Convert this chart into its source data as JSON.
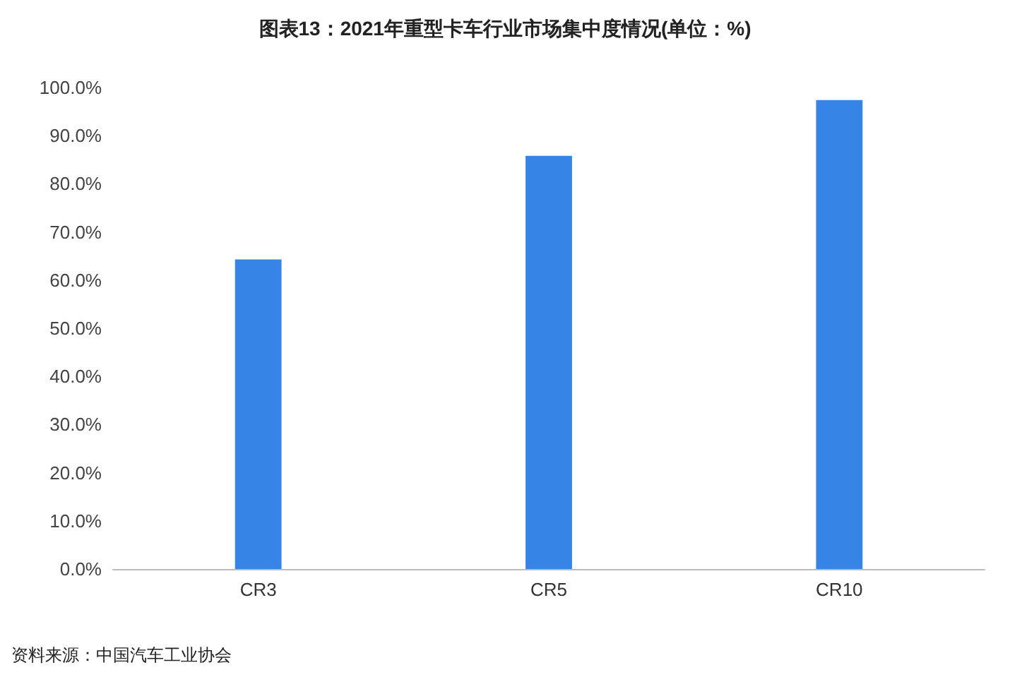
{
  "chart_data": {
    "type": "bar",
    "title": "图表13：2021年重型卡车行业市场集中度情况(单位：%)",
    "categories": [
      "CR3",
      "CR5",
      "CR10"
    ],
    "values": [
      64.3,
      85.8,
      97.4
    ],
    "color": "#3684e6",
    "ylim": [
      0,
      100
    ],
    "yticks": [
      {
        "value": 0,
        "label": "0.0%"
      },
      {
        "value": 10,
        "label": "10.0%"
      },
      {
        "value": 20,
        "label": "20.0%"
      },
      {
        "value": 30,
        "label": "30.0%"
      },
      {
        "value": 40,
        "label": "40.0%"
      },
      {
        "value": 50,
        "label": "50.0%"
      },
      {
        "value": 60,
        "label": "60.0%"
      },
      {
        "value": 70,
        "label": "70.0%"
      },
      {
        "value": 80,
        "label": "80.0%"
      },
      {
        "value": 90,
        "label": "90.0%"
      },
      {
        "value": 100,
        "label": "100.0%"
      }
    ],
    "grid": false,
    "annotations": [
      "资料来源：中国汽车工业协会"
    ]
  }
}
